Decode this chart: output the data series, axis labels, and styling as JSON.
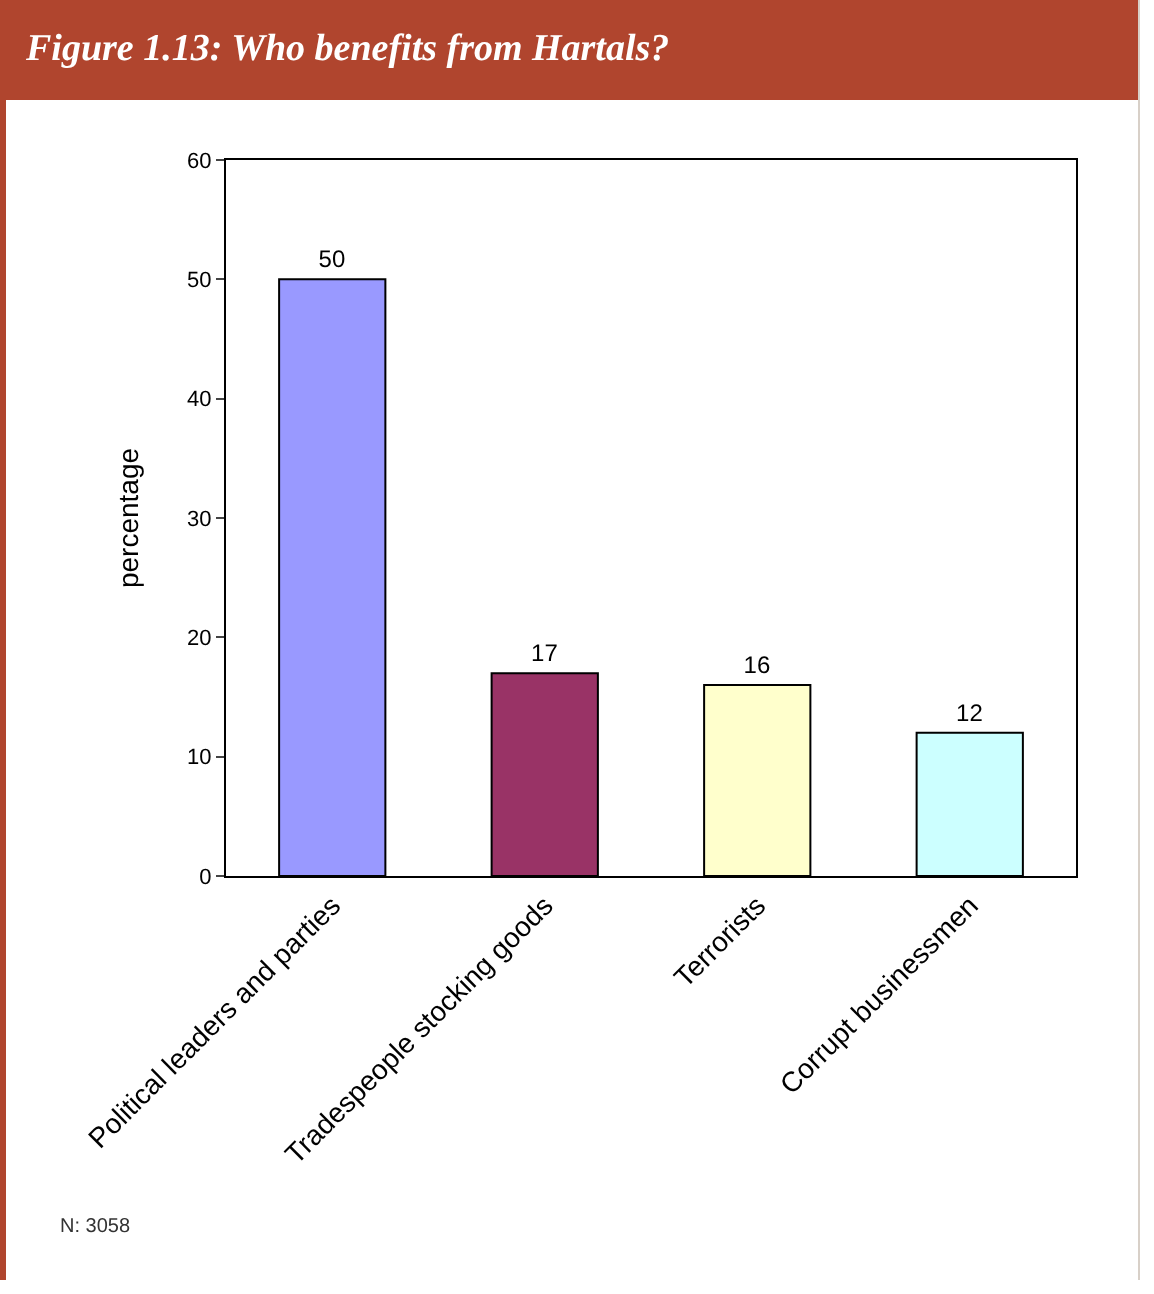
{
  "chart_data": {
    "type": "bar",
    "title": "Figure 1.13: Who benefits from Hartals?",
    "ylabel": "percentage",
    "categories": [
      "Political leaders and parties",
      "Tradespeople stocking goods",
      "Terrorists",
      "Corrupt businessmen"
    ],
    "values": [
      50,
      17,
      16,
      12
    ],
    "colors": [
      "#9999ff",
      "#993366",
      "#ffffcc",
      "#ccffff"
    ],
    "ylim": [
      0,
      60
    ],
    "yticks": [
      0,
      10,
      20,
      30,
      40,
      50,
      60
    ],
    "grid": false,
    "data_labels": true,
    "annotations": [
      "N: 3058"
    ]
  }
}
